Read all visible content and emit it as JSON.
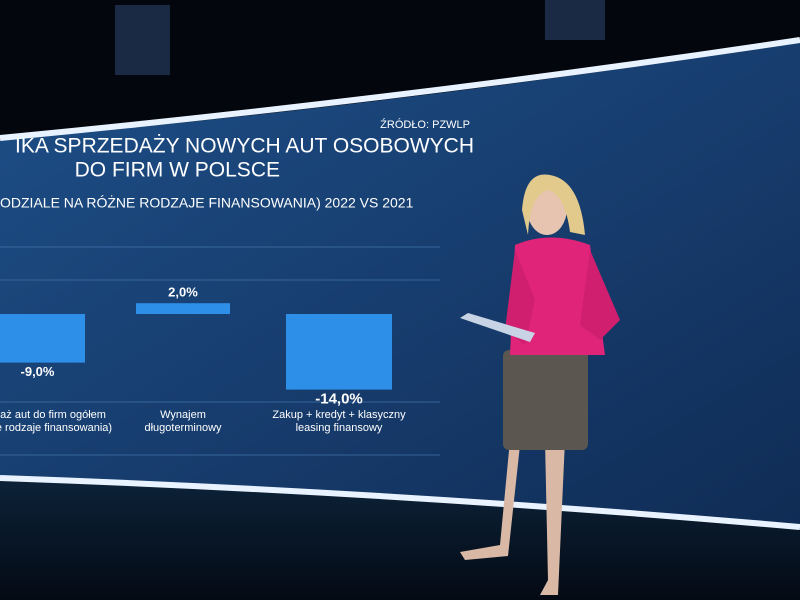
{
  "chart_data": {
    "type": "bar",
    "source": "ŹRÓDŁO: PZWLP",
    "title": [
      "IKA SPRZEDAŻY NOWYCH AUT OSOBOWYCH",
      "DO FIRM W POLSCE"
    ],
    "subtitle": "ODZIALE NA RÓŻNE RODZAJE FINANSOWANIA) 2022 VS 2021",
    "categories": [
      [
        "daż aut do firm ogółem",
        "kie rodzaje finansowania)"
      ],
      [
        "Wynajem",
        "długoterminowy"
      ],
      [
        "Zakup + kredyt + klasyczny",
        "leasing finansowy"
      ]
    ],
    "values": [
      -9.0,
      2.0,
      -14.0
    ],
    "value_labels": [
      "-9,0%",
      "2,0%",
      "-14,0%"
    ],
    "color": "#2e8fe8"
  }
}
